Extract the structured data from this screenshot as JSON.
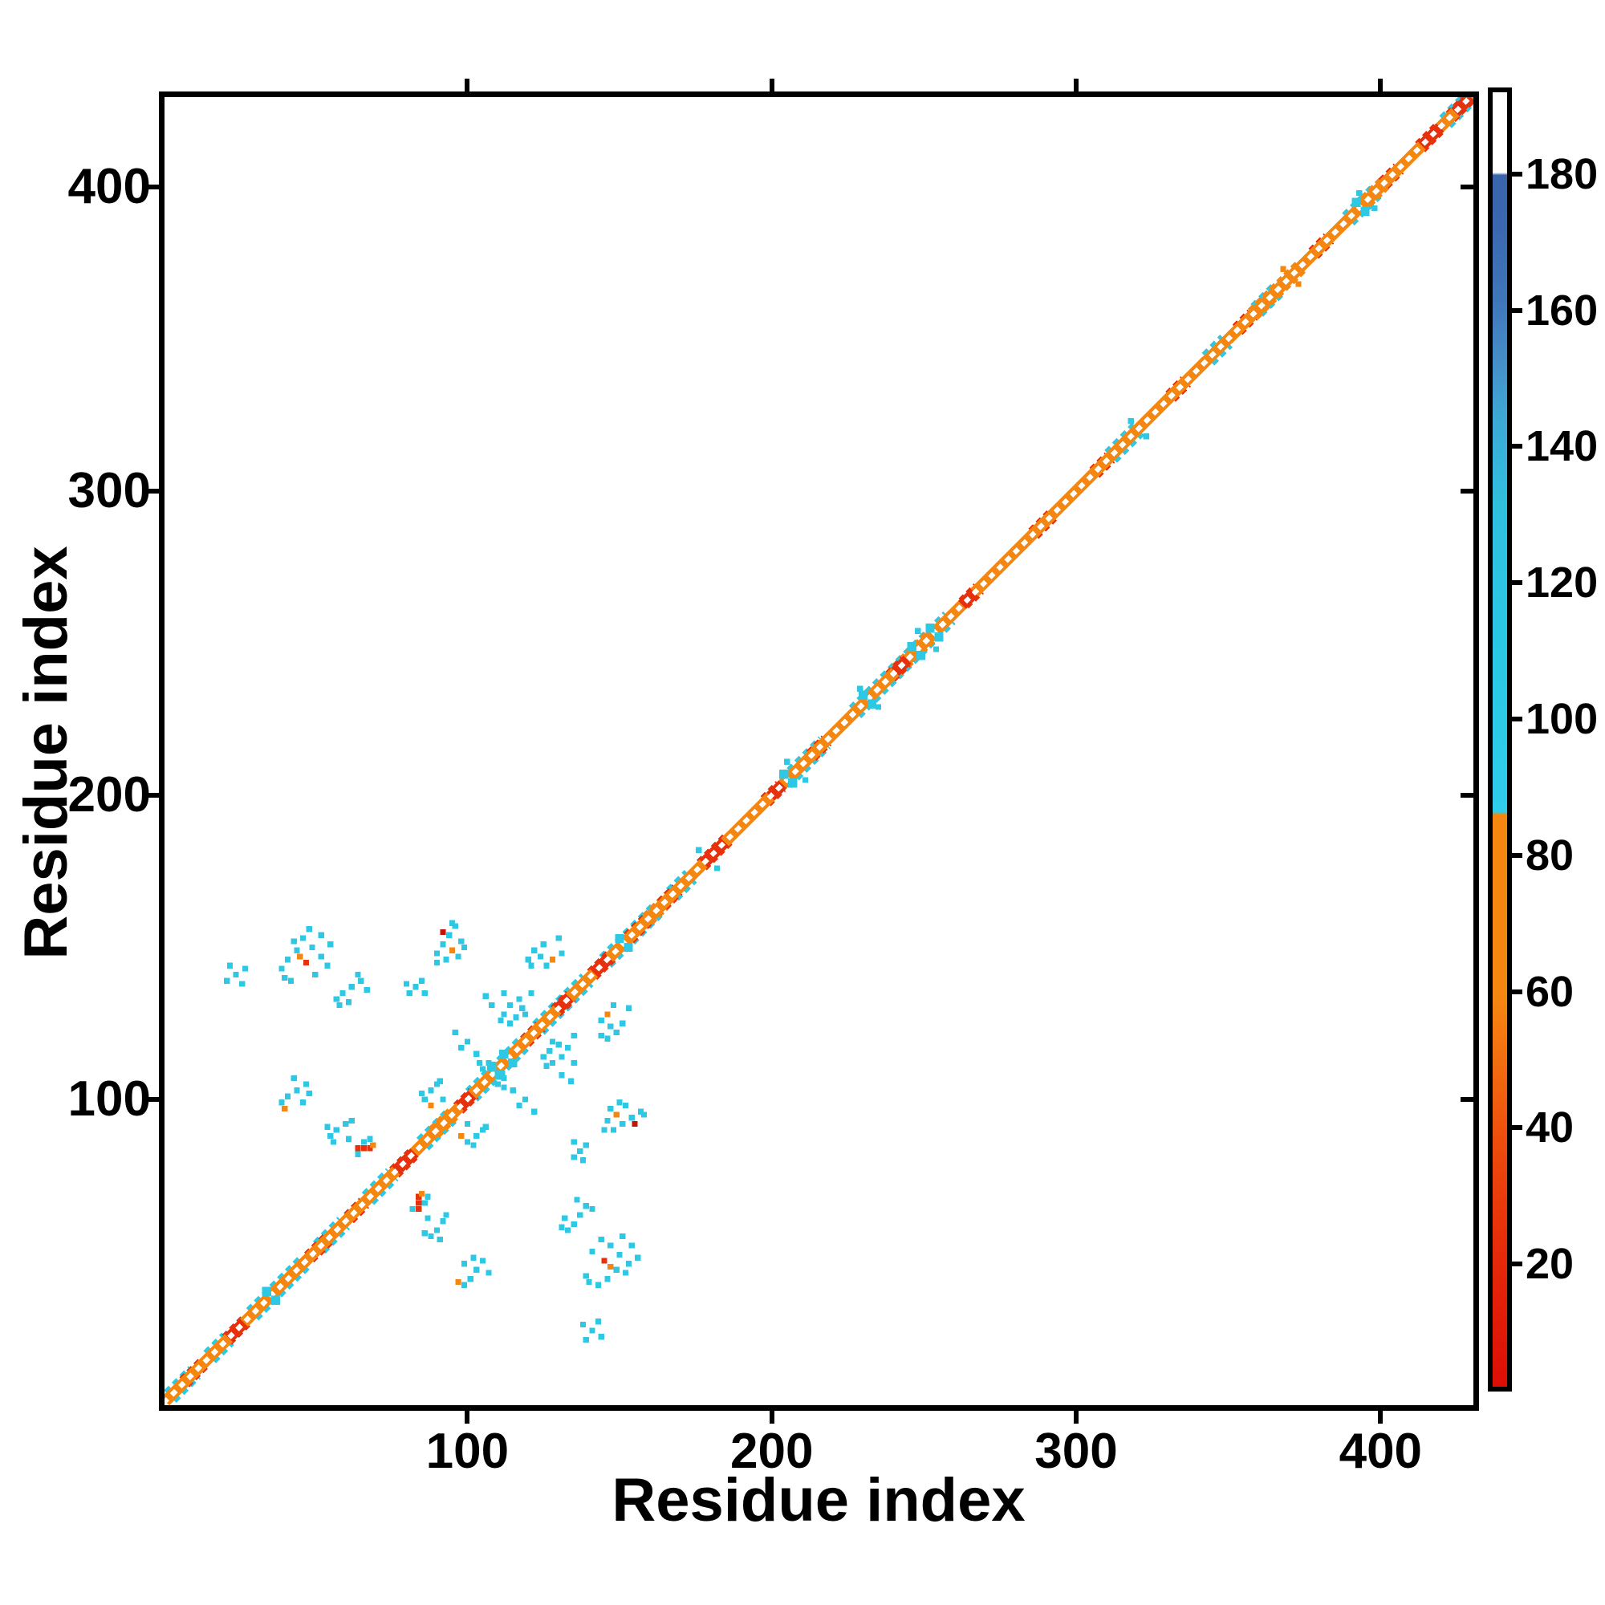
{
  "chart_data": {
    "type": "heatmap",
    "subtype": "residue-residue-contact-map",
    "title": "",
    "xlabel": "Residue index",
    "ylabel": "Residue index",
    "x_range": [
      1,
      430
    ],
    "y_range": [
      1,
      430
    ],
    "x_ticks": [
      100,
      200,
      300,
      400
    ],
    "y_ticks": [
      100,
      200,
      300,
      400
    ],
    "grid": false,
    "colors": {
      "orange": "#f58610",
      "red": "#e7300c",
      "dark_red": "#c41405",
      "cyan": "#2fc8e4",
      "blue": "#3a67af",
      "background": "#ffffff",
      "frame": "#000000"
    },
    "colorbar": {
      "range": [
        2,
        192
      ],
      "ticks": [
        20,
        40,
        60,
        80,
        100,
        120,
        140,
        160,
        180
      ],
      "position": "right",
      "stops_bottom_to_top": [
        [
          "#dc0d06",
          0
        ],
        [
          "#e62c0a",
          11
        ],
        [
          "#ee4d0d",
          19
        ],
        [
          "#f37110",
          26
        ],
        [
          "#f58610",
          30
        ],
        [
          "#f58610",
          44.2
        ],
        [
          "#2fcde9",
          44.4
        ],
        [
          "#2ac7e4",
          58
        ],
        [
          "#2fc0de",
          68
        ],
        [
          "#3da8d4",
          75
        ],
        [
          "#468fc9",
          79
        ],
        [
          "#3f76ba",
          84
        ],
        [
          "#3a67af",
          90
        ],
        [
          "#3a65ae",
          93.6
        ],
        [
          "#ffffff",
          93.8
        ],
        [
          "#ffffff",
          100
        ]
      ]
    },
    "diagonal_band": {
      "range": [
        0.2,
        429.8
      ],
      "main_offset": 1.15,
      "cyan_fringe_segments": [
        [
          1,
          9
        ],
        [
          14,
          20
        ],
        [
          28,
          45
        ],
        [
          50,
          58
        ],
        [
          66,
          74
        ],
        [
          84,
          93
        ],
        [
          100,
          117
        ],
        [
          122,
          138
        ],
        [
          144,
          161
        ],
        [
          166,
          172
        ],
        [
          203,
          216
        ],
        [
          226,
          257
        ],
        [
          310,
          319
        ],
        [
          342,
          348
        ],
        [
          358,
          365
        ],
        [
          388,
          397
        ],
        [
          420,
          430
        ]
      ],
      "orange_outer_segments": [
        [
          88,
          95
        ],
        [
          158,
          166
        ],
        [
          240,
          252
        ],
        [
          357,
          373
        ],
        [
          394,
          400
        ]
      ],
      "red_outer_segments": [
        [
          6,
          13
        ],
        [
          20,
          27
        ],
        [
          47,
          53
        ],
        [
          60,
          65
        ],
        [
          75,
          81
        ],
        [
          96,
          101
        ],
        [
          118,
          123
        ],
        [
          128,
          133
        ],
        [
          140,
          147
        ],
        [
          152,
          158
        ],
        [
          163,
          168
        ],
        [
          176,
          185
        ],
        [
          197,
          202
        ],
        [
          212,
          217
        ],
        [
          238,
          243
        ],
        [
          262,
          267
        ],
        [
          285,
          291
        ],
        [
          305,
          310
        ],
        [
          330,
          335
        ],
        [
          352,
          357
        ],
        [
          377,
          382
        ],
        [
          400,
          405
        ],
        [
          412,
          418
        ],
        [
          422,
          429
        ]
      ],
      "red_inner_segments": [
        [
          21,
          26
        ],
        [
          76,
          82
        ],
        [
          97,
          101
        ],
        [
          129,
          133
        ],
        [
          141,
          146
        ],
        [
          177,
          184
        ],
        [
          199,
          203
        ],
        [
          240,
          244
        ],
        [
          262,
          266
        ],
        [
          413,
          419
        ],
        [
          424,
          429
        ]
      ],
      "cyan_blobs_on_band": [
        34,
        108,
        112,
        150,
        204,
        230,
        246,
        252,
        392
      ]
    },
    "contacts_symmetric": true,
    "contact_points": [
      [
        39,
        143,
        "c"
      ],
      [
        41,
        146,
        "c"
      ],
      [
        44,
        149,
        "c"
      ],
      [
        43,
        152,
        "c"
      ],
      [
        46,
        153,
        "c"
      ],
      [
        49,
        150,
        "c"
      ],
      [
        52,
        147,
        "c"
      ],
      [
        47,
        145,
        "r"
      ],
      [
        45,
        147,
        "o"
      ],
      [
        40,
        140,
        "c"
      ],
      [
        50,
        141,
        "c"
      ],
      [
        54,
        144,
        "c"
      ],
      [
        52,
        154,
        "c"
      ],
      [
        55,
        151,
        "c"
      ],
      [
        48,
        156,
        "c"
      ],
      [
        42,
        139,
        "c"
      ],
      [
        90,
        148,
        "c"
      ],
      [
        92,
        151,
        "c"
      ],
      [
        94,
        154,
        "c"
      ],
      [
        96,
        157,
        "c"
      ],
      [
        98,
        152,
        "c"
      ],
      [
        93,
        146,
        "c"
      ],
      [
        95,
        149,
        "o"
      ],
      [
        92,
        155,
        "d"
      ],
      [
        90,
        145,
        "c"
      ],
      [
        97,
        147,
        "c"
      ],
      [
        99,
        150,
        "c"
      ],
      [
        95,
        158,
        "c"
      ],
      [
        81,
        135,
        "c"
      ],
      [
        83,
        137,
        "c"
      ],
      [
        80,
        138,
        "c"
      ],
      [
        85,
        139,
        "c"
      ],
      [
        86,
        135,
        "c"
      ],
      [
        112,
        128,
        "c"
      ],
      [
        114,
        131,
        "c"
      ],
      [
        117,
        133,
        "c"
      ],
      [
        112,
        135,
        "c"
      ],
      [
        119,
        128,
        "c"
      ],
      [
        111,
        126,
        "c"
      ],
      [
        116,
        127,
        "c"
      ],
      [
        121,
        135,
        "c"
      ],
      [
        114,
        125,
        "c"
      ],
      [
        118,
        130,
        "c"
      ],
      [
        120,
        146,
        "c"
      ],
      [
        122,
        149,
        "c"
      ],
      [
        125,
        151,
        "c"
      ],
      [
        128,
        146,
        "o"
      ],
      [
        121,
        144,
        "c"
      ],
      [
        130,
        153,
        "c"
      ],
      [
        126,
        144,
        "c"
      ],
      [
        131,
        148,
        "c"
      ],
      [
        124,
        147,
        "c"
      ],
      [
        105,
        110,
        "c"
      ],
      [
        107,
        112,
        "c"
      ],
      [
        104,
        112,
        "c"
      ],
      [
        108,
        110,
        "c"
      ],
      [
        86,
        100,
        "c"
      ],
      [
        88,
        103,
        "c"
      ],
      [
        90,
        105,
        "c"
      ],
      [
        88,
        98,
        "o"
      ],
      [
        85,
        102,
        "c"
      ],
      [
        92,
        100,
        "c"
      ],
      [
        91,
        106,
        "c"
      ],
      [
        55,
        88,
        "c"
      ],
      [
        57,
        90,
        "c"
      ],
      [
        60,
        92,
        "c"
      ],
      [
        56,
        86,
        "c"
      ],
      [
        54,
        91,
        "c"
      ],
      [
        61,
        87,
        "c"
      ],
      [
        62,
        93,
        "c"
      ],
      [
        64,
        84,
        "r"
      ],
      [
        66,
        84,
        "r"
      ],
      [
        68,
        84,
        "r"
      ],
      [
        69,
        85,
        "o"
      ],
      [
        64,
        82,
        "c"
      ],
      [
        66,
        86,
        "c"
      ],
      [
        68,
        87,
        "c"
      ],
      [
        57,
        133,
        "c"
      ],
      [
        59,
        135,
        "c"
      ],
      [
        62,
        137,
        "c"
      ],
      [
        65,
        139,
        "c"
      ],
      [
        58,
        131,
        "c"
      ],
      [
        64,
        141,
        "c"
      ],
      [
        61,
        132,
        "c"
      ],
      [
        67,
        136,
        "c"
      ],
      [
        39,
        99,
        "c"
      ],
      [
        41,
        101,
        "c"
      ],
      [
        44,
        103,
        "c"
      ],
      [
        47,
        105,
        "c"
      ],
      [
        40,
        97,
        "o"
      ],
      [
        43,
        107,
        "c"
      ],
      [
        46,
        99,
        "c"
      ],
      [
        48,
        102,
        "c"
      ],
      [
        103,
        115,
        "c"
      ],
      [
        100,
        119,
        "c"
      ],
      [
        96,
        122,
        "c"
      ],
      [
        108,
        131,
        "c"
      ],
      [
        106,
        134,
        "c"
      ],
      [
        98,
        117,
        "c"
      ],
      [
        21,
        139,
        "c"
      ],
      [
        24,
        141,
        "c"
      ],
      [
        27,
        143,
        "c"
      ],
      [
        22,
        144,
        "c"
      ],
      [
        26,
        138,
        "c"
      ],
      [
        176,
        182,
        "c"
      ],
      [
        205,
        211,
        "c"
      ],
      [
        229,
        235,
        "c"
      ],
      [
        248,
        254,
        "c"
      ],
      [
        318,
        323,
        "c"
      ],
      [
        368,
        373,
        "o"
      ],
      [
        393,
        398,
        "c"
      ]
    ]
  }
}
